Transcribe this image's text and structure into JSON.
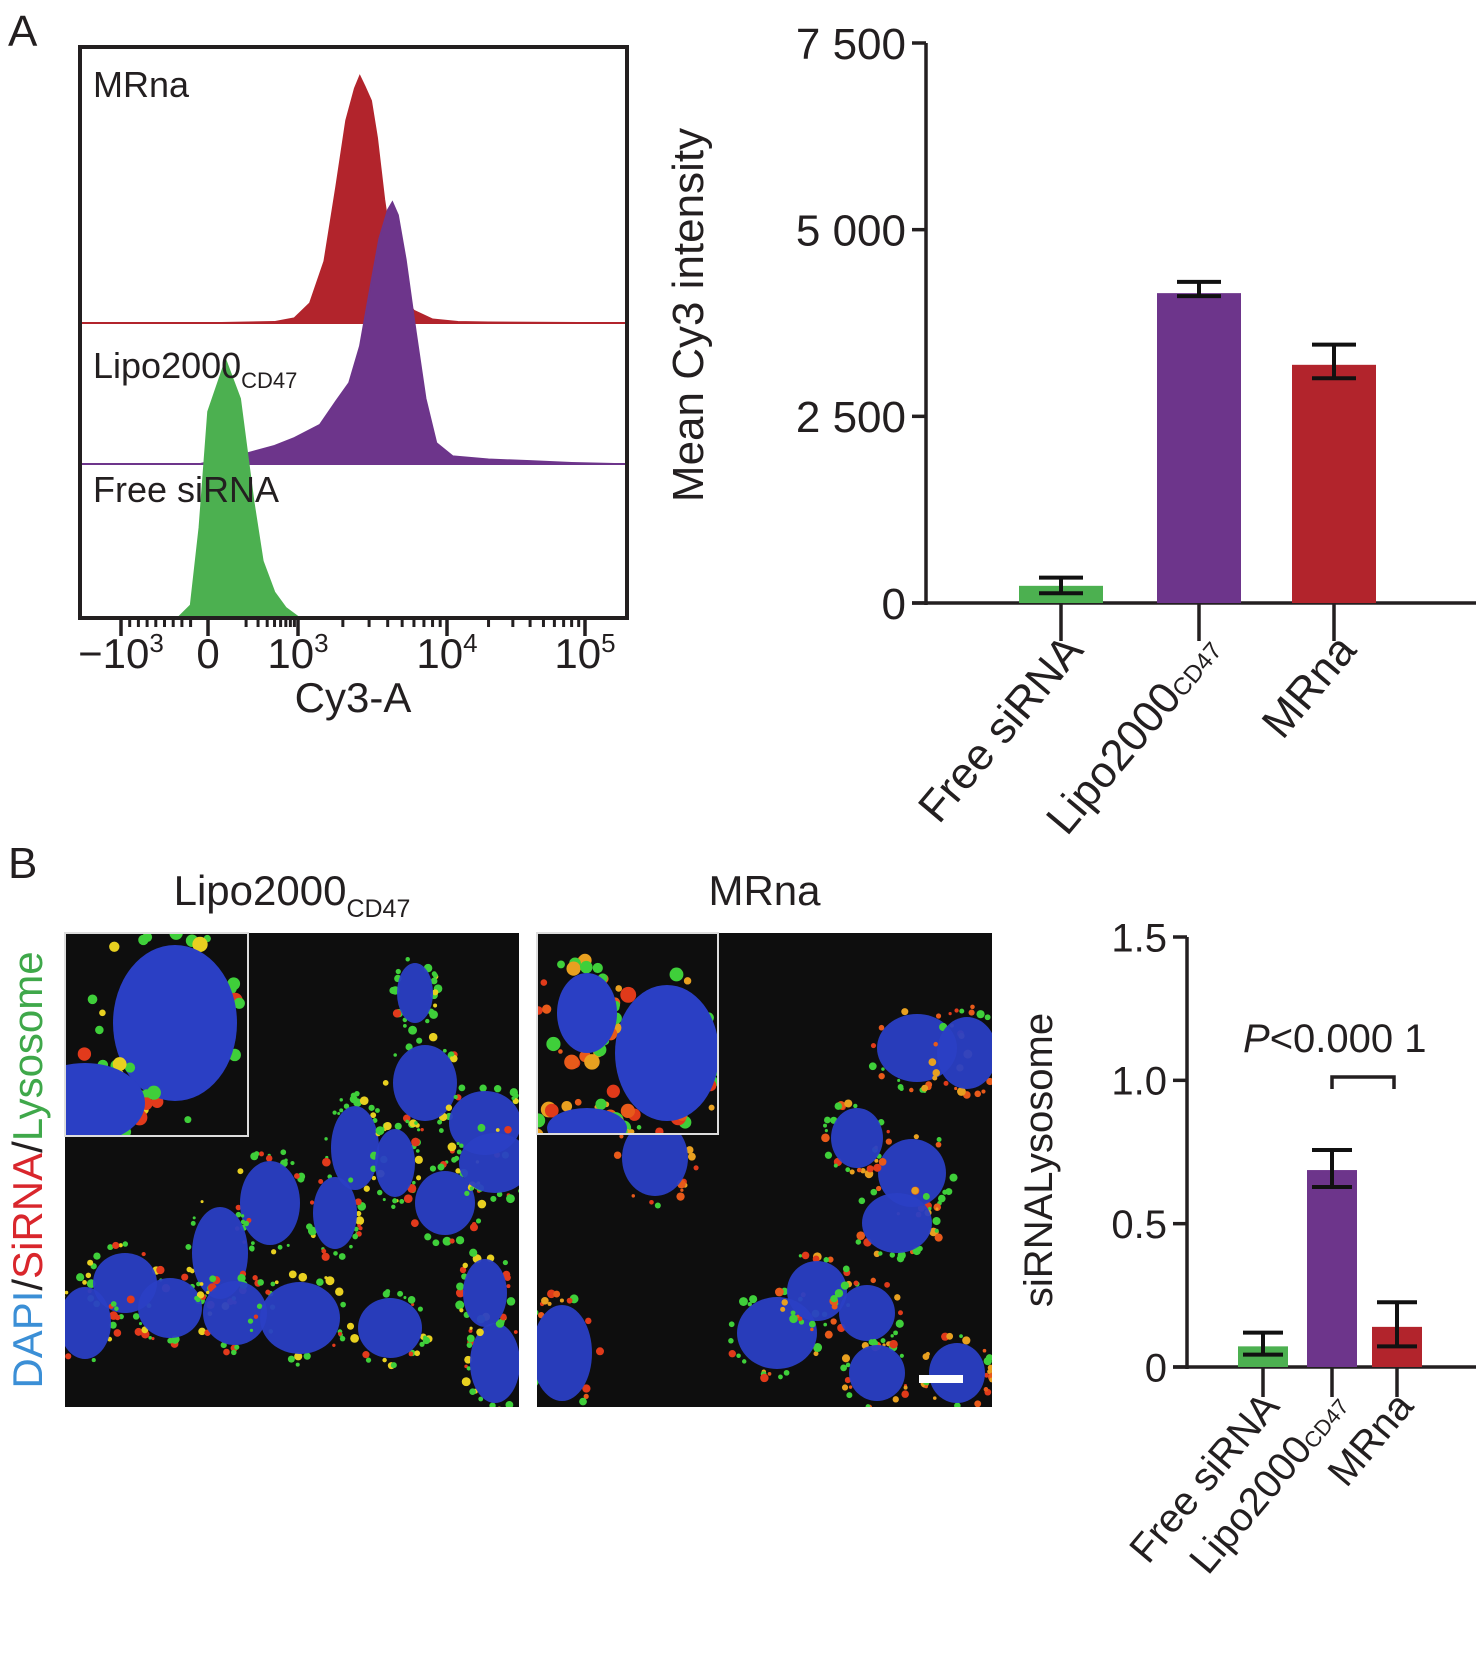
{
  "panels": {
    "a_letter": "A",
    "b_letter": "B"
  },
  "colors": {
    "free_sirna": "#4cb050",
    "lipo2000": "#6d358b",
    "mrna": "#b2242c",
    "dapi_text": "#3b8fd6",
    "sirna_text": "#d9262c",
    "lysosome_text": "#3fa84a",
    "text": "#231f20",
    "image_bg": "#0e0e0e",
    "nucleus": "#2a3fc4"
  },
  "chart_data": [
    {
      "id": "histogram",
      "type": "area",
      "title": "",
      "xlabel": "Cy3-A",
      "ylabel": "",
      "x_scale": "biexponential",
      "x_ticks": [
        {
          "value": -1000,
          "base": "−10",
          "exp": "3"
        },
        {
          "value": 0,
          "base": "0",
          "exp": ""
        },
        {
          "value": 1000,
          "base": "10",
          "exp": "3"
        },
        {
          "value": 10000,
          "base": "10",
          "exp": "4"
        },
        {
          "value": 100000,
          "base": "10",
          "exp": "5"
        }
      ],
      "series": [
        {
          "name": "MRna",
          "label_main": "MRna",
          "label_sub": "",
          "color_key": "mrna",
          "offset_rank": 2,
          "points": [
            [
              -1000,
              0
            ],
            [
              0,
              0
            ],
            [
              500,
              0.005
            ],
            [
              900,
              0.02
            ],
            [
              1200,
              0.08
            ],
            [
              1500,
              0.25
            ],
            [
              1800,
              0.55
            ],
            [
              2100,
              0.82
            ],
            [
              2400,
              0.95
            ],
            [
              2600,
              1.0
            ],
            [
              2800,
              0.96
            ],
            [
              3100,
              0.9
            ],
            [
              3400,
              0.75
            ],
            [
              3800,
              0.5
            ],
            [
              4300,
              0.28
            ],
            [
              5000,
              0.12
            ],
            [
              6000,
              0.05
            ],
            [
              8000,
              0.015
            ],
            [
              12000,
              0.005
            ],
            [
              20000,
              0.003
            ],
            [
              200000,
              0
            ]
          ]
        },
        {
          "name": "Lipo2000 CD47",
          "label_main": "Lipo2000",
          "label_sub": "CD47",
          "color_key": "lipo2000",
          "offset_rank": 1,
          "points": [
            [
              -1000,
              0
            ],
            [
              -100,
              0
            ],
            [
              200,
              0.04
            ],
            [
              500,
              0.07
            ],
            [
              900,
              0.1
            ],
            [
              1400,
              0.15
            ],
            [
              1800,
              0.24
            ],
            [
              2200,
              0.31
            ],
            [
              2600,
              0.45
            ],
            [
              3000,
              0.65
            ],
            [
              3500,
              0.86
            ],
            [
              4000,
              0.97
            ],
            [
              4300,
              1.0
            ],
            [
              4700,
              0.95
            ],
            [
              5300,
              0.78
            ],
            [
              6200,
              0.5
            ],
            [
              7200,
              0.25
            ],
            [
              8500,
              0.08
            ],
            [
              11000,
              0.03
            ],
            [
              20000,
              0.018
            ],
            [
              40000,
              0.012
            ],
            [
              80000,
              0.005
            ],
            [
              200000,
              0
            ]
          ]
        },
        {
          "name": "Free siRNA",
          "label_main": "Free siRNA",
          "label_sub": "",
          "color_key": "free_sirna",
          "offset_rank": 0,
          "points": [
            [
              -1000,
              0
            ],
            [
              -350,
              0
            ],
            [
              -200,
              0.05
            ],
            [
              -100,
              0.35
            ],
            [
              0,
              0.8
            ],
            [
              80,
              1.0
            ],
            [
              160,
              0.85
            ],
            [
              260,
              0.45
            ],
            [
              350,
              0.22
            ],
            [
              500,
              0.1
            ],
            [
              700,
              0.04
            ],
            [
              1000,
              0.005
            ],
            [
              1200,
              0
            ],
            [
              200000,
              0
            ]
          ]
        }
      ]
    },
    {
      "id": "bar_mean_intensity",
      "type": "bar",
      "title": "",
      "xlabel": "",
      "ylabel": "Mean Cy3 intensity",
      "ylim": [
        0,
        7500
      ],
      "y_ticks": [
        {
          "value": 0,
          "label": "0"
        },
        {
          "value": 2500,
          "label": "2 500"
        },
        {
          "value": 5000,
          "label": "5 000"
        },
        {
          "value": 7500,
          "label": "7 500"
        }
      ],
      "categories": [
        {
          "main": "Free siRNA",
          "sub": ""
        },
        {
          "main": "Lipo2000",
          "sub": "CD47"
        },
        {
          "main": "MRna",
          "sub": ""
        }
      ],
      "values": [
        230,
        4150,
        3190
      ],
      "error_high": [
        340,
        4300,
        3460
      ],
      "error_low": [
        130,
        4110,
        3010
      ],
      "color_keys": [
        "free_sirna",
        "lipo2000",
        "mrna"
      ]
    },
    {
      "id": "bar_colocalization",
      "type": "bar",
      "title": "",
      "xlabel": "",
      "ylabel": "siRNALysosome",
      "ylim": [
        0,
        1.5
      ],
      "y_ticks": [
        {
          "value": 0,
          "label": "0"
        },
        {
          "value": 0.5,
          "label": "0.5"
        },
        {
          "value": 1.0,
          "label": "1.0"
        },
        {
          "value": 1.5,
          "label": "1.5"
        }
      ],
      "categories": [
        {
          "main": "Free siRNA",
          "sub": ""
        },
        {
          "main": "Lipo2000",
          "sub": "CD47"
        },
        {
          "main": "MRna",
          "sub": ""
        }
      ],
      "values": [
        0.072,
        0.687,
        0.14
      ],
      "error_high": [
        0.12,
        0.757,
        0.226
      ],
      "error_low": [
        0.043,
        0.628,
        0.072
      ],
      "color_keys": [
        "free_sirna",
        "lipo2000",
        "mrna"
      ],
      "annotation": {
        "italic": "P",
        "text": "<0.000 1",
        "between": [
          1,
          2
        ]
      }
    }
  ],
  "microscopy": {
    "stain_label": [
      {
        "text": "DAPI",
        "color_key": "dapi_text"
      },
      {
        "text": "/",
        "color_key": "text"
      },
      {
        "text": "SiRNA",
        "color_key": "sirna_text"
      },
      {
        "text": "/",
        "color_key": "text"
      },
      {
        "text": "Lysosome",
        "color_key": "lysosome_text"
      }
    ],
    "images": [
      {
        "title_main": "Lipo2000",
        "title_sub": "CD47",
        "has_inset": true,
        "scale_bar": false,
        "dominant_puncta": "green"
      },
      {
        "title_main": "MRna",
        "title_sub": "",
        "has_inset": true,
        "scale_bar": true,
        "dominant_puncta": "red"
      }
    ]
  }
}
